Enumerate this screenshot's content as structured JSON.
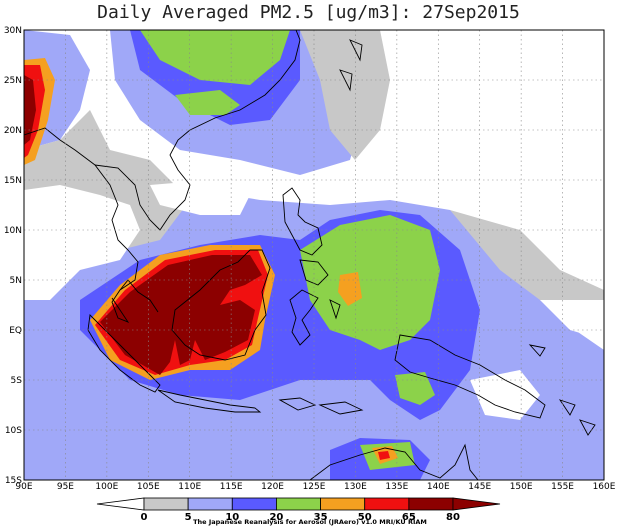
{
  "title": "Daily Averaged PM2.5 [ug/m3]: 27Sep2015",
  "map": {
    "lon_range": [
      90,
      160
    ],
    "lat_range": [
      -15,
      30
    ],
    "lon_labels": [
      "90E",
      "95E",
      "100E",
      "105E",
      "110E",
      "115E",
      "120E",
      "125E",
      "130E",
      "135E",
      "140E",
      "145E",
      "150E",
      "155E",
      "160E"
    ],
    "lat_labels": [
      "30N",
      "25N",
      "20N",
      "15N",
      "10N",
      "5N",
      "EQ",
      "5S",
      "10S",
      "15S"
    ],
    "grid": "dotted"
  },
  "colorbar": {
    "labels": [
      "0",
      "5",
      "10",
      "20",
      "35",
      "50",
      "65",
      "80"
    ],
    "colors": [
      "#ffffff",
      "#c8c8c8",
      "#a0a8f8",
      "#5a5aff",
      "#8cd24a",
      "#f5a020",
      "#f01010",
      "#8c0000"
    ]
  },
  "credit": "The Japanese Reanalysis for Aerosol (JRAero) v1.0 MRI/KU RIAM"
}
